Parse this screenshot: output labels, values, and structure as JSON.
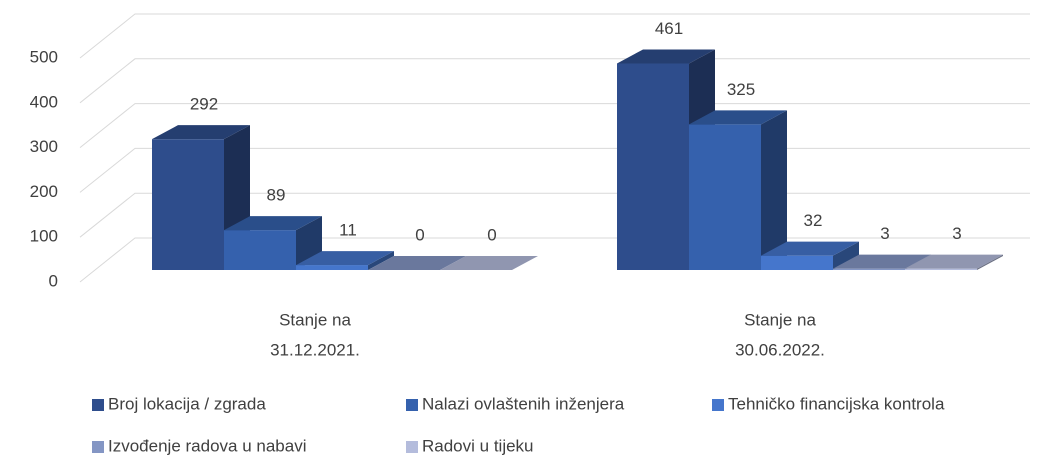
{
  "chart_data": {
    "type": "bar3d",
    "categories": [
      [
        "Stanje na",
        "31.12.2021."
      ],
      [
        "Stanje na",
        "30.06.2022."
      ]
    ],
    "series": [
      {
        "name": "Broj lokacija / zgrada",
        "color": "#2e4d8c",
        "values": [
          292,
          461
        ]
      },
      {
        "name": "Nalazi ovlaštenih inženjera",
        "color": "#3561ad",
        "values": [
          89,
          325
        ]
      },
      {
        "name": "Tehničko financijska kontrola",
        "color": "#4576cc",
        "values": [
          11,
          32
        ]
      },
      {
        "name": "Izvođenje radova u nabavi",
        "color": "#8496c4",
        "values": [
          0,
          3
        ]
      },
      {
        "name": "Radovi u tijeku",
        "color": "#b4bcdc",
        "values": [
          0,
          3
        ]
      }
    ],
    "ylim": [
      0,
      500
    ],
    "yticks": [
      0,
      100,
      200,
      300,
      400,
      500
    ],
    "grid": true,
    "legend": "bottom"
  }
}
